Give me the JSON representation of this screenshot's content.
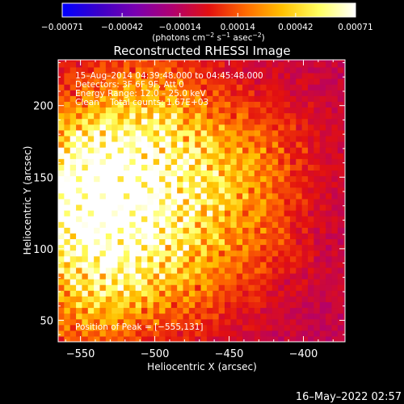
{
  "chart_data": {
    "type": "heatmap",
    "title": "Reconstructed RHESSI Image",
    "xlabel": "Heliocentric X (arcsec)",
    "ylabel": "Heliocentric Y (arcsec)",
    "xlim": [
      -565,
      -372
    ],
    "ylim": [
      35,
      232
    ],
    "x_ticks": [
      -550,
      -500,
      -450,
      -400
    ],
    "y_ticks": [
      50,
      100,
      150,
      200
    ],
    "x_tick_labels": [
      "−550",
      "−500",
      "−450",
      "−400"
    ],
    "y_tick_labels": [
      "50",
      "100",
      "150",
      "200"
    ],
    "colorbar": {
      "range": [
        -0.00071,
        0.00071
      ],
      "ticks": [
        "−0.00071",
        "−0.00042",
        "−0.00014",
        "0.00014",
        "0.00042",
        "0.00071"
      ],
      "tick_values": [
        -0.00071,
        -0.00042,
        -0.00014,
        0.00014,
        0.00042,
        0.00071
      ],
      "units_text": "(photons cm",
      "units_exp1": "−2",
      "units_mid": " s",
      "units_exp2": "−1",
      "units_end": " asec",
      "units_exp3": "−2",
      "units_close": ")",
      "colormap": [
        "#0000ff",
        "#3b00c8",
        "#7a00b0",
        "#b00070",
        "#e21010",
        "#ff6a00",
        "#ffc000",
        "#ffff60",
        "#ffffff"
      ]
    },
    "annotations": [
      "15–Aug–2014 04:39:48.000 to 04:45:48.000",
      "Detectors: 3F 6F 9F, Att 0",
      "Energy Range: 12.0 – 25.0 keV",
      "Clean    Total counts: 1.67E+03"
    ],
    "peak_label": "Position of Peak = [−555,131]",
    "peak": [
      -555,
      131
    ],
    "grid": false,
    "pixel_size_arcsec": 4,
    "hotspots": [
      {
        "x": -555,
        "y": 131,
        "strength": 1.0
      },
      {
        "x": -540,
        "y": 175,
        "strength": 0.55
      },
      {
        "x": -488,
        "y": 165,
        "strength": 0.75
      },
      {
        "x": -528,
        "y": 125,
        "strength": 0.6
      },
      {
        "x": -510,
        "y": 90,
        "strength": 0.55
      },
      {
        "x": -478,
        "y": 130,
        "strength": 0.45
      },
      {
        "x": -440,
        "y": 155,
        "strength": 0.45
      },
      {
        "x": -415,
        "y": 175,
        "strength": 0.35
      },
      {
        "x": -430,
        "y": 105,
        "strength": 0.45
      },
      {
        "x": -470,
        "y": 75,
        "strength": 0.35
      },
      {
        "x": -545,
        "y": 60,
        "strength": 0.5
      },
      {
        "x": -500,
        "y": 215,
        "strength": 0.35
      }
    ]
  },
  "footer": {
    "timestamp": "16–May–2022 02:57"
  }
}
